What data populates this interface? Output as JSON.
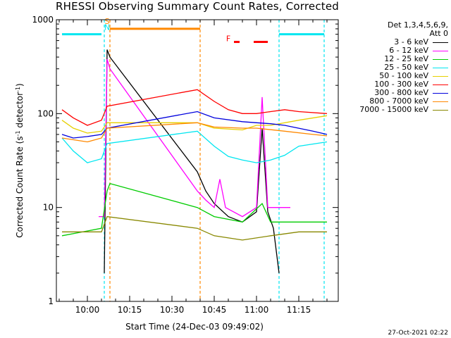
{
  "chart_data": {
    "type": "line",
    "title": "RHESSI Observing Summary Count Rates, Corrected",
    "xlabel": "Start Time (24-Dec-03 09:49:02)",
    "ylabel": "Corrected Count Rate",
    "ylabel_unit_pre": "(s",
    "ylabel_unit_sup1": "-1",
    "ylabel_unit_mid": " detector",
    "ylabel_unit_sup2": "-1",
    "ylabel_unit_post": ")",
    "y_scale": "log",
    "ylim": [
      1,
      1000
    ],
    "xlim_minutes": [
      "09:49",
      "10:29"
    ],
    "x_ticks": [
      "10:00",
      "10:15",
      "10:30",
      "10:45",
      "11:00",
      "11:15"
    ],
    "y_ticks": [
      "1",
      "10",
      "100",
      "1000"
    ],
    "legend_header": [
      "Det 1,3,4,5,6,9,",
      "Att 0"
    ],
    "series": [
      {
        "name": "3 - 6 keV",
        "color": "#000000",
        "points": [
          [
            "10:06",
            2
          ],
          [
            "10:07",
            480
          ],
          [
            "10:08",
            400
          ],
          [
            "10:39",
            24
          ],
          [
            "10:42",
            15
          ],
          [
            "10:45",
            11
          ],
          [
            "10:50",
            8
          ],
          [
            "10:55",
            7
          ],
          [
            "11:00",
            9
          ],
          [
            "11:02",
            70
          ],
          [
            "11:04",
            9
          ],
          [
            "11:06",
            6
          ],
          [
            "11:08",
            2
          ]
        ]
      },
      {
        "name": "6 - 12 keV",
        "color": "#ff00ff",
        "points": [
          [
            "10:04",
            8
          ],
          [
            "10:06",
            8
          ],
          [
            "10:07",
            380
          ],
          [
            "10:08",
            300
          ],
          [
            "10:39",
            15
          ],
          [
            "10:42",
            12
          ],
          [
            "10:45",
            10
          ],
          [
            "10:47",
            20
          ],
          [
            "10:49",
            10
          ],
          [
            "10:55",
            8
          ],
          [
            "11:00",
            10
          ],
          [
            "11:02",
            150
          ],
          [
            "11:04",
            10
          ],
          [
            "11:06",
            10
          ],
          [
            "11:12",
            10
          ]
        ]
      },
      {
        "name": "12 - 25 keV",
        "color": "#00cc00",
        "points": [
          [
            "09:51",
            5
          ],
          [
            "10:05",
            6
          ],
          [
            "10:07",
            15
          ],
          [
            "10:08",
            18
          ],
          [
            "10:39",
            10
          ],
          [
            "10:45",
            8
          ],
          [
            "10:55",
            7
          ],
          [
            "11:02",
            11
          ],
          [
            "11:05",
            7
          ],
          [
            "11:15",
            7
          ],
          [
            "11:25",
            7
          ]
        ]
      },
      {
        "name": "25 - 50 keV",
        "color": "#00e6f0",
        "points": [
          [
            "09:51",
            55
          ],
          [
            "09:55",
            40
          ],
          [
            "10:00",
            30
          ],
          [
            "10:05",
            33
          ],
          [
            "10:07",
            48
          ],
          [
            "10:39",
            65
          ],
          [
            "10:45",
            45
          ],
          [
            "10:50",
            35
          ],
          [
            "10:55",
            32
          ],
          [
            "11:00",
            30
          ],
          [
            "11:05",
            32
          ],
          [
            "11:10",
            36
          ],
          [
            "11:15",
            45
          ],
          [
            "11:25",
            50
          ]
        ]
      },
      {
        "name": "50 - 100 keV",
        "color": "#e6d000",
        "points": [
          [
            "09:51",
            85
          ],
          [
            "09:55",
            70
          ],
          [
            "10:00",
            62
          ],
          [
            "10:05",
            65
          ],
          [
            "10:07",
            80
          ],
          [
            "10:39",
            80
          ],
          [
            "10:45",
            70
          ],
          [
            "10:55",
            67
          ],
          [
            "11:00",
            75
          ],
          [
            "11:05",
            75
          ],
          [
            "11:15",
            85
          ],
          [
            "11:25",
            95
          ]
        ]
      },
      {
        "name": "100 - 300 keV",
        "color": "#ff0000",
        "points": [
          [
            "09:51",
            110
          ],
          [
            "09:55",
            90
          ],
          [
            "10:00",
            75
          ],
          [
            "10:05",
            85
          ],
          [
            "10:07",
            120
          ],
          [
            "10:39",
            180
          ],
          [
            "10:45",
            135
          ],
          [
            "10:50",
            110
          ],
          [
            "10:55",
            100
          ],
          [
            "11:00",
            100
          ],
          [
            "11:05",
            105
          ],
          [
            "11:10",
            110
          ],
          [
            "11:15",
            105
          ],
          [
            "11:25",
            100
          ]
        ]
      },
      {
        "name": "300 - 800 keV",
        "color": "#0000dd",
        "points": [
          [
            "09:51",
            60
          ],
          [
            "09:55",
            55
          ],
          [
            "10:00",
            57
          ],
          [
            "10:05",
            60
          ],
          [
            "10:07",
            70
          ],
          [
            "10:39",
            105
          ],
          [
            "10:45",
            90
          ],
          [
            "10:55",
            82
          ],
          [
            "11:00",
            80
          ],
          [
            "11:05",
            78
          ],
          [
            "11:10",
            75
          ],
          [
            "11:20",
            65
          ],
          [
            "11:25",
            60
          ]
        ]
      },
      {
        "name": "800 - 7000 keV",
        "color": "#ff8800",
        "points": [
          [
            "09:51",
            55
          ],
          [
            "10:00",
            50
          ],
          [
            "10:05",
            55
          ],
          [
            "10:07",
            70
          ],
          [
            "10:39",
            80
          ],
          [
            "10:45",
            72
          ],
          [
            "10:55",
            70
          ],
          [
            "11:00",
            70
          ],
          [
            "11:10",
            65
          ],
          [
            "11:20",
            60
          ],
          [
            "11:25",
            58
          ]
        ]
      },
      {
        "name": "7000 - 15000 keV",
        "color": "#888800",
        "points": [
          [
            "09:51",
            5.5
          ],
          [
            "10:05",
            5.5
          ],
          [
            "10:07",
            8
          ],
          [
            "10:39",
            6
          ],
          [
            "10:45",
            5
          ],
          [
            "10:55",
            4.5
          ],
          [
            "11:05",
            5
          ],
          [
            "11:15",
            5.5
          ],
          [
            "11:25",
            5.5
          ]
        ]
      }
    ],
    "vertical_markers": [
      {
        "kind": "night",
        "color": "#00e6f0",
        "x": [
          "10:06",
          "11:08",
          "11:24"
        ]
      },
      {
        "kind": "saa",
        "color": "#ff8800",
        "x": [
          "10:08",
          "10:40"
        ]
      }
    ],
    "segments": [
      {
        "kind": "night",
        "color": "#00e6f0",
        "from": "09:51",
        "to": "10:05",
        "y": 700
      },
      {
        "kind": "night",
        "color": "#00e6f0",
        "from": "11:08",
        "to": "11:24",
        "y": 700
      },
      {
        "kind": "saa",
        "color": "#ff8800",
        "from": "10:08",
        "to": "10:40",
        "y": 800
      },
      {
        "kind": "flare",
        "color": "#ff0000",
        "from": "10:52",
        "to": "10:54",
        "y": 580
      },
      {
        "kind": "flare",
        "color": "#ff0000",
        "from": "10:59",
        "to": "11:04",
        "y": 580
      }
    ],
    "annotations": [
      {
        "text": "S",
        "color": "#ff8800",
        "x": "10:07",
        "y": 900
      },
      {
        "text": "N",
        "color": "#00e6f0",
        "x": "10:07",
        "y": 780
      },
      {
        "text": "F",
        "color": "#ff0000",
        "x": "10:50",
        "y": 590
      }
    ]
  },
  "footer": {
    "timestamp": "27-Oct-2021 02:22"
  }
}
